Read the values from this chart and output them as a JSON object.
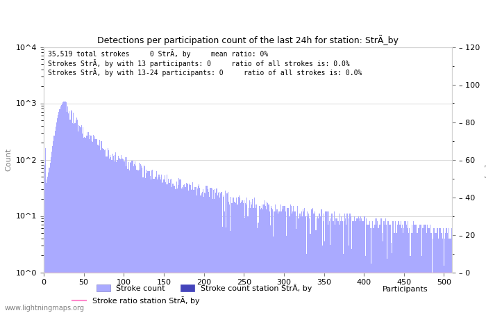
{
  "title": "Detections per participation count of the last 24h for station: StrÃ_by",
  "bar_color": "#aaaaff",
  "station_bar_color": "#4444bb",
  "line_color": "#ff88cc",
  "ylabel_left": "Count",
  "ylabel_right": "Ratio [%]",
  "xlabel": "Participants",
  "watermark": "www.lightningmaps.org",
  "legend1_label": "Stroke count",
  "legend2_label": "Stroke count station StrÃ, by",
  "legend3_label": "Stroke ratio station StrÃ, by",
  "info_line1": "35,519 total strokes     0 StrÃ, by     mean ratio: 0%",
  "info_line2": "Strokes StrÃ, by with 13 participants: 0     ratio of all strokes is: 0.0%",
  "info_line3": "Strokes StrÃ, by with 13-24 participants: 0     ratio of all strokes is: 0.0%",
  "xmax": 510,
  "right_yticks": [
    0,
    20,
    40,
    60,
    80,
    100,
    120
  ]
}
